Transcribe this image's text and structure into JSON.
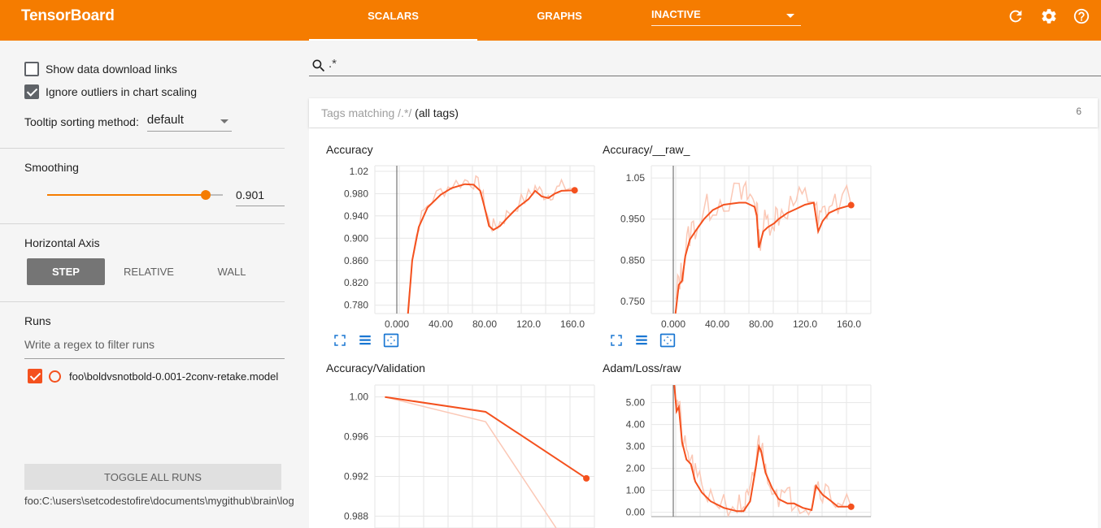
{
  "header": {
    "brand": "TensorBoard",
    "tabs": [
      {
        "label": "SCALARS"
      },
      {
        "label": "GRAPHS"
      }
    ],
    "inactive_label": "INACTIVE",
    "icons": [
      "refresh-icon",
      "settings-icon",
      "help-icon"
    ]
  },
  "sidebar": {
    "show_download": {
      "label": "Show data download links",
      "checked": false
    },
    "ignore_outliers": {
      "label": "Ignore outliers in chart scaling",
      "checked": true
    },
    "tooltip_label": "Tooltip sorting method:",
    "tooltip_value": "default",
    "smoothing_label": "Smoothing",
    "smoothing_value": "0.901",
    "smoothing_fraction": 0.901,
    "haxis_label": "Horizontal Axis",
    "haxis_options": [
      "STEP",
      "RELATIVE",
      "WALL"
    ],
    "haxis_selected": "STEP",
    "runs_label": "Runs",
    "runs_filter_placeholder": "Write a regex to filter runs",
    "run_name": "foo\\boldvsnotbold-0.001-2conv-retake.model",
    "toggle_label": "TOGGLE ALL RUNS",
    "logdir": "foo:C:\\users\\setcodestofire\\documents\\mygithub\\brain\\log"
  },
  "main": {
    "search_value": ".*",
    "tags_prefix": "Tags matching /.*/",
    "tags_suffix": "(all tags)",
    "tags_count": "6"
  },
  "colors": {
    "accent": "#f57c00",
    "series": "#f4511e",
    "series_raw": "#fbc8b6",
    "icon_blue": "#1976d2"
  },
  "chart_data": [
    {
      "type": "line",
      "title": "Accuracy",
      "x_ticks": [
        "0.000",
        "40.00",
        "80.00",
        "120.0",
        "160.0"
      ],
      "y_ticks": [
        "1.02",
        "0.980",
        "0.940",
        "0.900",
        "0.860",
        "0.820",
        "0.780"
      ],
      "xlim": [
        -20,
        180
      ],
      "ylim": [
        0.765,
        1.03
      ],
      "series": [
        {
          "values": [
            [
              10,
              0.76
            ],
            [
              14,
              0.86
            ],
            [
              20,
              0.92
            ],
            [
              28,
              0.955
            ],
            [
              40,
              0.978
            ],
            [
              50,
              0.99
            ],
            [
              62,
              0.997
            ],
            [
              70,
              0.996
            ],
            [
              76,
              0.985
            ],
            [
              80,
              0.955
            ],
            [
              84,
              0.922
            ],
            [
              88,
              0.915
            ],
            [
              94,
              0.922
            ],
            [
              100,
              0.935
            ],
            [
              110,
              0.955
            ],
            [
              120,
              0.97
            ],
            [
              126,
              0.985
            ],
            [
              132,
              0.975
            ],
            [
              138,
              0.972
            ],
            [
              144,
              0.98
            ],
            [
              150,
              0.985
            ],
            [
              162,
              0.986
            ]
          ]
        }
      ]
    },
    {
      "type": "line",
      "title": "Accuracy/__raw_",
      "x_ticks": [
        "0.000",
        "40.00",
        "80.00",
        "120.0",
        "160.0"
      ],
      "y_ticks": [
        "1.05",
        "0.950",
        "0.850",
        "0.750"
      ],
      "xlim": [
        -20,
        180
      ],
      "ylim": [
        0.72,
        1.08
      ],
      "series": [
        {
          "values": [
            [
              2,
              0.72
            ],
            [
              5,
              0.79
            ],
            [
              8,
              0.8
            ],
            [
              11,
              0.86
            ],
            [
              15,
              0.9
            ],
            [
              20,
              0.92
            ],
            [
              28,
              0.95
            ],
            [
              36,
              0.972
            ],
            [
              46,
              0.985
            ],
            [
              60,
              0.99
            ],
            [
              66,
              0.99
            ],
            [
              70,
              0.985
            ],
            [
              74,
              0.98
            ],
            [
              76,
              0.96
            ],
            [
              78,
              0.88
            ],
            [
              82,
              0.92
            ],
            [
              86,
              0.93
            ],
            [
              92,
              0.94
            ],
            [
              96,
              0.95
            ],
            [
              104,
              0.965
            ],
            [
              112,
              0.975
            ],
            [
              120,
              0.985
            ],
            [
              128,
              0.99
            ],
            [
              132,
              0.92
            ],
            [
              136,
              0.945
            ],
            [
              142,
              0.965
            ],
            [
              150,
              0.975
            ],
            [
              162,
              0.984
            ]
          ]
        }
      ]
    },
    {
      "type": "line",
      "title": "Accuracy/Validation",
      "x_ticks": [],
      "y_ticks": [
        "1.00",
        "0.996",
        "0.992",
        "0.988"
      ],
      "ylim": [
        0.9868,
        1.0012
      ],
      "series": [
        {
          "values": [
            [
              0,
              1.0
            ],
            [
              0.5,
              0.9985
            ],
            [
              1,
              0.9918
            ]
          ]
        }
      ]
    },
    {
      "type": "line",
      "title": "Adam/Loss/raw",
      "x_ticks": [],
      "y_ticks": [
        "5.00",
        "4.00",
        "3.00",
        "2.00",
        "1.00",
        "0.00"
      ],
      "xlim": [
        -20,
        180
      ],
      "ylim": [
        -0.2,
        5.8
      ],
      "series": [
        {
          "values": [
            [
              1,
              5.8
            ],
            [
              3,
              4.6
            ],
            [
              5,
              4.8
            ],
            [
              8,
              3.2
            ],
            [
              12,
              2.4
            ],
            [
              16,
              2.2
            ],
            [
              20,
              1.4
            ],
            [
              26,
              0.9
            ],
            [
              34,
              0.5
            ],
            [
              46,
              0.2
            ],
            [
              58,
              0.05
            ],
            [
              64,
              0.05
            ],
            [
              66,
              0.2
            ],
            [
              70,
              0.5
            ],
            [
              72,
              1.1
            ],
            [
              75,
              2.0
            ],
            [
              78,
              3.0
            ],
            [
              80,
              2.8
            ],
            [
              84,
              1.8
            ],
            [
              90,
              1.1
            ],
            [
              96,
              0.6
            ],
            [
              104,
              0.4
            ],
            [
              110,
              0.4
            ],
            [
              118,
              0.2
            ],
            [
              126,
              0.1
            ],
            [
              130,
              1.2
            ],
            [
              136,
              0.8
            ],
            [
              144,
              0.5
            ],
            [
              150,
              0.25
            ],
            [
              162,
              0.25
            ]
          ]
        }
      ]
    }
  ]
}
